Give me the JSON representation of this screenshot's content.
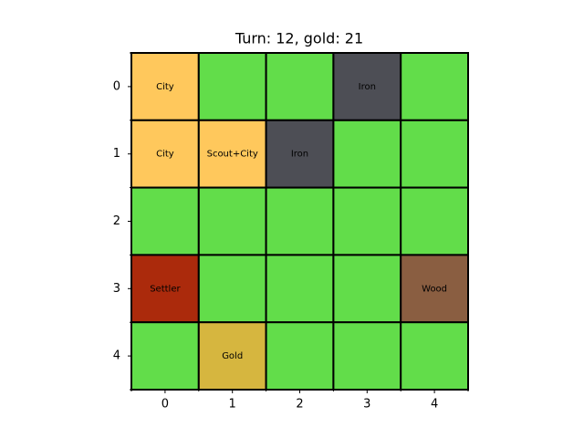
{
  "title": "Turn: 12, gold: 21",
  "board": {
    "rows": [
      [
        {
          "color": "#ffc85c",
          "label": "City"
        },
        {
          "color": "#62dd4a"
        },
        {
          "color": "#62dd4a"
        },
        {
          "color": "#4d4e55",
          "label": "Iron"
        },
        {
          "color": "#62dd4a"
        }
      ],
      [
        {
          "color": "#ffc85c",
          "label": "City"
        },
        {
          "color": "#ffc85c",
          "label": "Scout+City"
        },
        {
          "color": "#4d4e55",
          "label": "Iron"
        },
        {
          "color": "#62dd4a"
        },
        {
          "color": "#62dd4a"
        }
      ],
      [
        {
          "color": "#62dd4a"
        },
        {
          "color": "#62dd4a"
        },
        {
          "color": "#62dd4a"
        },
        {
          "color": "#62dd4a"
        },
        {
          "color": "#62dd4a"
        }
      ],
      [
        {
          "color": "#ab2a0c",
          "label": "Settler"
        },
        {
          "color": "#62dd4a"
        },
        {
          "color": "#62dd4a"
        },
        {
          "color": "#62dd4a"
        },
        {
          "color": "#8a5e41",
          "label": "Wood"
        }
      ],
      [
        {
          "color": "#62dd4a"
        },
        {
          "color": "#d6b63f",
          "label": "Gold"
        },
        {
          "color": "#62dd4a"
        },
        {
          "color": "#62dd4a"
        },
        {
          "color": "#62dd4a"
        }
      ]
    ],
    "xticks": [
      0,
      1,
      2,
      3,
      4
    ],
    "yticks": [
      0,
      1,
      2,
      3,
      4
    ]
  }
}
